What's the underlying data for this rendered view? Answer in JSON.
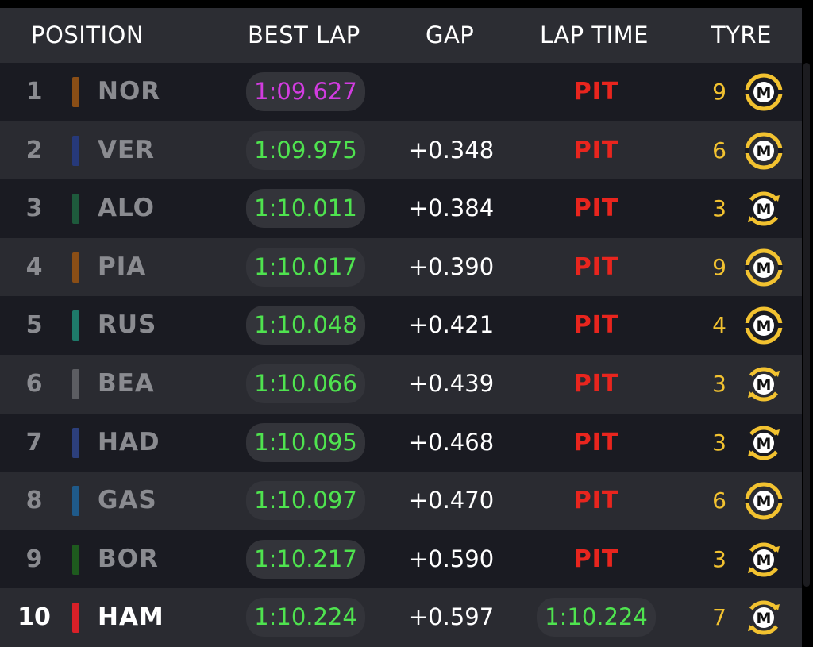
{
  "header": {
    "position": "POSITION",
    "best_lap": "BEST LAP",
    "gap": "GAP",
    "lap_time": "LAP TIME",
    "tyre": "TYRE"
  },
  "colors": {
    "purple_time": "#d23ce0",
    "green_time": "#4fe34f",
    "pit_red": "#e8251e",
    "tyre_yellow": "#f2c230"
  },
  "rows": [
    {
      "pos": "1",
      "code": "NOR",
      "team_color": "#8a4e16",
      "best": "1:09.627",
      "best_purple": true,
      "gap": "",
      "lap": "PIT",
      "laps": "9",
      "tyre_icon": "medium-tyre-icon",
      "tyre_letter": "M",
      "tyre_used": false
    },
    {
      "pos": "2",
      "code": "VER",
      "team_color": "#26397a",
      "best": "1:09.975",
      "best_purple": false,
      "gap": "+0.348",
      "lap": "PIT",
      "laps": "6",
      "tyre_icon": "medium-tyre-icon",
      "tyre_letter": "M",
      "tyre_used": false
    },
    {
      "pos": "3",
      "code": "ALO",
      "team_color": "#1e5a3c",
      "best": "1:10.011",
      "best_purple": false,
      "gap": "+0.384",
      "lap": "PIT",
      "laps": "3",
      "tyre_icon": "medium-tyre-used-icon",
      "tyre_letter": "M",
      "tyre_used": true
    },
    {
      "pos": "4",
      "code": "PIA",
      "team_color": "#8a4e16",
      "best": "1:10.017",
      "best_purple": false,
      "gap": "+0.390",
      "lap": "PIT",
      "laps": "9",
      "tyre_icon": "medium-tyre-icon",
      "tyre_letter": "M",
      "tyre_used": false
    },
    {
      "pos": "5",
      "code": "RUS",
      "team_color": "#1e7a6a",
      "best": "1:10.048",
      "best_purple": false,
      "gap": "+0.421",
      "lap": "PIT",
      "laps": "4",
      "tyre_icon": "medium-tyre-icon",
      "tyre_letter": "M",
      "tyre_used": false
    },
    {
      "pos": "6",
      "code": "BEA",
      "team_color": "#5c5d62",
      "best": "1:10.066",
      "best_purple": false,
      "gap": "+0.439",
      "lap": "PIT",
      "laps": "3",
      "tyre_icon": "medium-tyre-used-icon",
      "tyre_letter": "M",
      "tyre_used": true
    },
    {
      "pos": "7",
      "code": "HAD",
      "team_color": "#2c3f7c",
      "best": "1:10.095",
      "best_purple": false,
      "gap": "+0.468",
      "lap": "PIT",
      "laps": "3",
      "tyre_icon": "medium-tyre-used-icon",
      "tyre_letter": "M",
      "tyre_used": true
    },
    {
      "pos": "8",
      "code": "GAS",
      "team_color": "#1f5a8a",
      "best": "1:10.097",
      "best_purple": false,
      "gap": "+0.470",
      "lap": "PIT",
      "laps": "6",
      "tyre_icon": "medium-tyre-icon",
      "tyre_letter": "M",
      "tyre_used": false
    },
    {
      "pos": "9",
      "code": "BOR",
      "team_color": "#1e5a1e",
      "best": "1:10.217",
      "best_purple": false,
      "gap": "+0.590",
      "lap": "PIT",
      "laps": "3",
      "tyre_icon": "medium-tyre-used-icon",
      "tyre_letter": "M",
      "tyre_used": true
    },
    {
      "pos": "10",
      "code": "HAM",
      "team_color": "#d82028",
      "best": "1:10.224",
      "best_purple": false,
      "gap": "+0.597",
      "lap": "1:10.224",
      "laps": "7",
      "tyre_icon": "medium-tyre-used-icon",
      "tyre_letter": "M",
      "tyre_used": true,
      "highlight": true
    }
  ]
}
